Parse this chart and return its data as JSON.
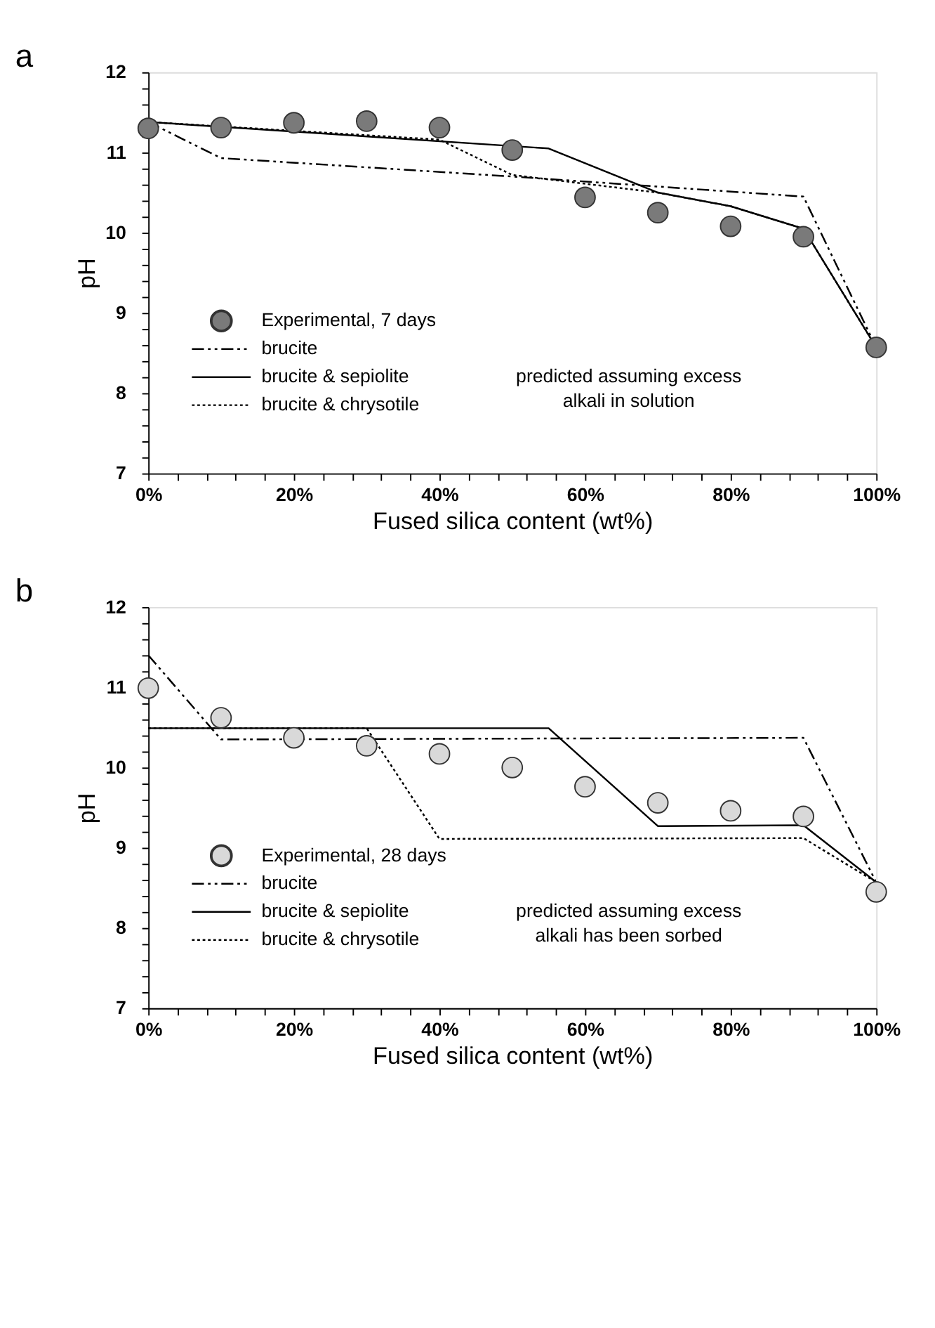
{
  "chart_data": [
    {
      "type": "line",
      "title": "a",
      "xlabel": "Fused silica content (wt%)",
      "ylabel": "pH",
      "legend": "bottom left",
      "grid": false,
      "xlim": [
        0,
        100
      ],
      "ylim": [
        7,
        12
      ],
      "xticks": [
        {
          "value": 0,
          "label": "0%"
        },
        {
          "value": 4,
          "label": null
        },
        {
          "value": 8,
          "label": null
        },
        {
          "value": 12,
          "label": null
        },
        {
          "value": 16,
          "label": null
        },
        {
          "value": 20,
          "label": "20%"
        },
        {
          "value": 24,
          "label": null
        },
        {
          "value": 28,
          "label": null
        },
        {
          "value": 32,
          "label": null
        },
        {
          "value": 36,
          "label": null
        },
        {
          "value": 40,
          "label": "40%"
        },
        {
          "value": 44,
          "label": null
        },
        {
          "value": 48,
          "label": null
        },
        {
          "value": 52,
          "label": null
        },
        {
          "value": 56,
          "label": null
        },
        {
          "value": 60,
          "label": "60%"
        },
        {
          "value": 64,
          "label": null
        },
        {
          "value": 68,
          "label": null
        },
        {
          "value": 72,
          "label": null
        },
        {
          "value": 76,
          "label": null
        },
        {
          "value": 80,
          "label": "80%"
        },
        {
          "value": 84,
          "label": null
        },
        {
          "value": 88,
          "label": null
        },
        {
          "value": 92,
          "label": null
        },
        {
          "value": 96,
          "label": null
        },
        {
          "value": 100,
          "label": "100%"
        }
      ],
      "yticks": [
        7,
        {
          "value": 7.2,
          "label": null
        },
        {
          "value": 7.4,
          "label": null
        },
        {
          "value": 7.6,
          "label": null
        },
        {
          "value": 7.8,
          "label": null
        },
        8,
        {
          "value": 8.2,
          "label": null
        },
        {
          "value": 8.4,
          "label": null
        },
        {
          "value": 8.6,
          "label": null
        },
        {
          "value": 8.8,
          "label": null
        },
        9,
        {
          "value": 9.2,
          "label": null
        },
        {
          "value": 9.4,
          "label": null
        },
        {
          "value": 9.6,
          "label": null
        },
        {
          "value": 9.8,
          "label": null
        },
        10,
        {
          "value": 10.2,
          "label": null
        },
        {
          "value": 10.4,
          "label": null
        },
        {
          "value": 10.6,
          "label": null
        },
        {
          "value": 10.8,
          "label": null
        },
        11,
        {
          "value": 11.2,
          "label": null
        },
        {
          "value": 11.4,
          "label": null
        },
        {
          "value": 11.6,
          "label": null
        },
        {
          "value": 11.8,
          "label": null
        },
        12
      ],
      "annotations": [
        "predicted assuming excess alkali in solution"
      ],
      "series": [
        {
          "name": "brucite",
          "line_style": "dashed",
          "color": "#000000",
          "x": [
            0,
            10,
            50,
            90,
            100
          ],
          "values": [
            11.38,
            10.93,
            10.7,
            10.45,
            8.57
          ]
        },
        {
          "name": "brucite & sepiolite",
          "line_style": "solid",
          "color": "#000000",
          "x": [
            0,
            55,
            70,
            80,
            90,
            100
          ],
          "values": [
            11.38,
            11.05,
            10.5,
            10.33,
            10.05,
            8.57
          ]
        },
        {
          "name": "brucite & chrysotile",
          "line_style": "dotted",
          "color": "#000000",
          "x": [
            0,
            40,
            50,
            70,
            80,
            90,
            100
          ],
          "values": [
            11.38,
            11.16,
            10.72,
            10.5,
            10.33,
            10.05,
            8.57
          ]
        },
        {
          "name": "Experimental, 7 days",
          "type": "scatter",
          "marker": "circle",
          "color": "#7a7a7a",
          "x": [
            0,
            10,
            20,
            30,
            40,
            50,
            60,
            70,
            80,
            90,
            100
          ],
          "values": [
            11.3,
            11.31,
            11.37,
            11.39,
            11.31,
            11.03,
            10.44,
            10.25,
            10.08,
            9.95,
            8.57
          ]
        }
      ]
    },
    {
      "type": "line",
      "title": "b",
      "xlabel": "Fused silica content (wt%)",
      "ylabel": "pH",
      "legend": "bottom left",
      "grid": false,
      "xlim": [
        0,
        100
      ],
      "ylim": [
        7,
        12
      ],
      "xticks": [
        {
          "value": 0,
          "label": "0%"
        },
        {
          "value": 4,
          "label": null
        },
        {
          "value": 8,
          "label": null
        },
        {
          "value": 12,
          "label": null
        },
        {
          "value": 16,
          "label": null
        },
        {
          "value": 20,
          "label": "20%"
        },
        {
          "value": 24,
          "label": null
        },
        {
          "value": 28,
          "label": null
        },
        {
          "value": 32,
          "label": null
        },
        {
          "value": 36,
          "label": null
        },
        {
          "value": 40,
          "label": "40%"
        },
        {
          "value": 44,
          "label": null
        },
        {
          "value": 48,
          "label": null
        },
        {
          "value": 52,
          "label": null
        },
        {
          "value": 56,
          "label": null
        },
        {
          "value": 60,
          "label": "60%"
        },
        {
          "value": 64,
          "label": null
        },
        {
          "value": 68,
          "label": null
        },
        {
          "value": 72,
          "label": null
        },
        {
          "value": 76,
          "label": null
        },
        {
          "value": 80,
          "label": "80%"
        },
        {
          "value": 84,
          "label": null
        },
        {
          "value": 88,
          "label": null
        },
        {
          "value": 92,
          "label": null
        },
        {
          "value": 96,
          "label": null
        },
        {
          "value": 100,
          "label": "100%"
        }
      ],
      "yticks": [
        7,
        {
          "value": 7.2,
          "label": null
        },
        {
          "value": 7.4,
          "label": null
        },
        {
          "value": 7.6,
          "label": null
        },
        {
          "value": 7.8,
          "label": null
        },
        8,
        {
          "value": 8.2,
          "label": null
        },
        {
          "value": 8.4,
          "label": null
        },
        {
          "value": 8.6,
          "label": null
        },
        {
          "value": 8.8,
          "label": null
        },
        9,
        {
          "value": 9.2,
          "label": null
        },
        {
          "value": 9.4,
          "label": null
        },
        {
          "value": 9.6,
          "label": null
        },
        {
          "value": 9.8,
          "label": null
        },
        10,
        {
          "value": 10.2,
          "label": null
        },
        {
          "value": 10.4,
          "label": null
        },
        {
          "value": 10.6,
          "label": null
        },
        {
          "value": 10.8,
          "label": null
        },
        11,
        {
          "value": 11.2,
          "label": null
        },
        {
          "value": 11.4,
          "label": null
        },
        {
          "value": 11.6,
          "label": null
        },
        {
          "value": 11.8,
          "label": null
        },
        12
      ],
      "annotations": [
        "predicted assuming excess alkali has been sorbed"
      ],
      "series": [
        {
          "name": "brucite",
          "line_style": "dashed",
          "color": "#000000",
          "x": [
            0,
            10,
            90,
            100
          ],
          "values": [
            11.4,
            10.35,
            10.37,
            8.57
          ]
        },
        {
          "name": "brucite & sepiolite",
          "line_style": "solid",
          "color": "#000000",
          "x": [
            0,
            55,
            70,
            90,
            100
          ],
          "values": [
            10.49,
            10.49,
            9.27,
            9.28,
            8.57
          ]
        },
        {
          "name": "brucite & chrysotile",
          "line_style": "dotted",
          "color": "#000000",
          "x": [
            0,
            30,
            40,
            90,
            100
          ],
          "values": [
            10.49,
            10.49,
            9.11,
            9.12,
            8.57
          ]
        },
        {
          "name": "Experimental, 28 days",
          "type": "scatter",
          "marker": "circle",
          "color": "#d9d9d9",
          "x": [
            0,
            10,
            20,
            30,
            40,
            50,
            60,
            70,
            80,
            90,
            100
          ],
          "values": [
            10.99,
            10.62,
            10.37,
            10.27,
            10.17,
            10.0,
            9.76,
            9.56,
            9.46,
            9.39,
            8.45
          ]
        }
      ]
    }
  ]
}
